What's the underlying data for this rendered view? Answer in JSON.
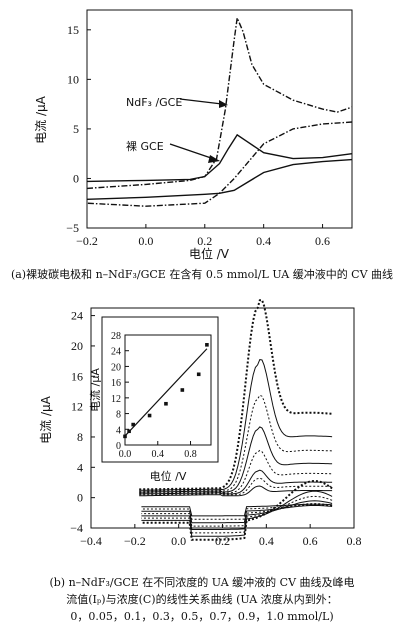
{
  "chart_data": [
    {
      "type": "line",
      "xlabel": "电位 /V",
      "ylabel": "电流 /μA",
      "xlim": [
        -0.2,
        0.7
      ],
      "ylim": [
        -5,
        17
      ],
      "xticks": [
        "−0.2",
        "0.0",
        "0.2",
        "0.4",
        "0.6"
      ],
      "yticks": [
        "−5",
        "0",
        "5",
        "10",
        "15"
      ],
      "annotations": [
        "NdF₃ /GCE",
        "裸 GCE"
      ],
      "series": [
        {
          "name": "NdF₃ /GCE",
          "style": "dash-dot",
          "forward": [
            [
              -0.2,
              -1.0
            ],
            [
              0.0,
              -0.6
            ],
            [
              0.15,
              -0.2
            ],
            [
              0.2,
              0.2
            ],
            [
              0.24,
              2.0
            ],
            [
              0.27,
              7.0
            ],
            [
              0.3,
              14.0
            ],
            [
              0.31,
              16.2
            ],
            [
              0.33,
              14.8
            ],
            [
              0.36,
              11.5
            ],
            [
              0.4,
              9.5
            ],
            [
              0.5,
              7.9
            ],
            [
              0.6,
              7.0
            ],
            [
              0.65,
              6.7
            ],
            [
              0.7,
              7.2
            ]
          ],
          "reverse": [
            [
              0.7,
              5.7
            ],
            [
              0.6,
              5.5
            ],
            [
              0.5,
              5.0
            ],
            [
              0.4,
              3.5
            ],
            [
              0.3,
              0.0
            ],
            [
              0.25,
              -1.5
            ],
            [
              0.2,
              -2.5
            ],
            [
              0.0,
              -2.8
            ],
            [
              -0.2,
              -2.5
            ]
          ]
        },
        {
          "name": "裸 GCE",
          "style": "solid",
          "forward": [
            [
              -0.2,
              -0.3
            ],
            [
              0.0,
              -0.2
            ],
            [
              0.15,
              -0.1
            ],
            [
              0.2,
              0.2
            ],
            [
              0.25,
              1.5
            ],
            [
              0.28,
              3.0
            ],
            [
              0.31,
              4.4
            ],
            [
              0.34,
              3.8
            ],
            [
              0.4,
              2.6
            ],
            [
              0.5,
              2.0
            ],
            [
              0.6,
              2.1
            ],
            [
              0.7,
              2.5
            ]
          ],
          "reverse": [
            [
              0.7,
              1.9
            ],
            [
              0.6,
              1.7
            ],
            [
              0.5,
              1.4
            ],
            [
              0.4,
              0.6
            ],
            [
              0.3,
              -1.2
            ],
            [
              0.25,
              -1.5
            ],
            [
              0.2,
              -1.6
            ],
            [
              0.0,
              -1.9
            ],
            [
              -0.2,
              -2.1
            ]
          ]
        }
      ]
    },
    {
      "type": "line",
      "xlabel": "电位 /V",
      "ylabel": "电流 /μA",
      "xlim": [
        -0.4,
        0.8
      ],
      "ylim": [
        -4,
        25
      ],
      "xticks": [
        "−0.4",
        "−0.2",
        "0.0",
        "0.2",
        "0.4",
        "0.6",
        "0.8"
      ],
      "yticks": [
        "−4",
        "0",
        "4",
        "8",
        "12",
        "16",
        "20",
        "24"
      ],
      "concentrations": [
        0,
        0.05,
        0.1,
        0.3,
        0.5,
        0.7,
        0.9,
        1.0
      ],
      "peak_currents": [
        1.5,
        2.5,
        3.5,
        6.0,
        9.0,
        13.0,
        17.5,
        25.0
      ],
      "inset": {
        "type": "scatter",
        "xlabel": "电位 /V",
        "ylabel": "电流 /μA",
        "xlim": [
          0,
          1.05
        ],
        "ylim": [
          0,
          28
        ],
        "xticks": [
          "0.0",
          "0.4",
          "0.8"
        ],
        "yticks": [
          "0",
          "4",
          "8",
          "12",
          "16",
          "20",
          "24",
          "28"
        ],
        "x": [
          0,
          0.05,
          0.1,
          0.3,
          0.5,
          0.7,
          0.9,
          1.0
        ],
        "y": [
          2.2,
          3.5,
          5.2,
          7.5,
          10.5,
          14.0,
          18.0,
          25.5
        ],
        "fit": [
          [
            0,
            2.3
          ],
          [
            1.0,
            24.5
          ]
        ]
      }
    }
  ],
  "captions": {
    "a": "(a)裸玻碳电极和 n–NdF₃/GCE 在含有 0.5 mmol/L UA 缓冲液中的 CV 曲线",
    "b_line1": "(b) n–NdF₃/GCE 在不同浓度的 UA 缓冲液的 CV 曲线及峰电",
    "b_line2": "流值(Iₚ)与浓度(C)的线性关系曲线 (UA 浓度从内到外：",
    "b_line3": "0，0.05，0.1，0.3，0.5，0.7，0.9，1.0 mmol/L)"
  }
}
